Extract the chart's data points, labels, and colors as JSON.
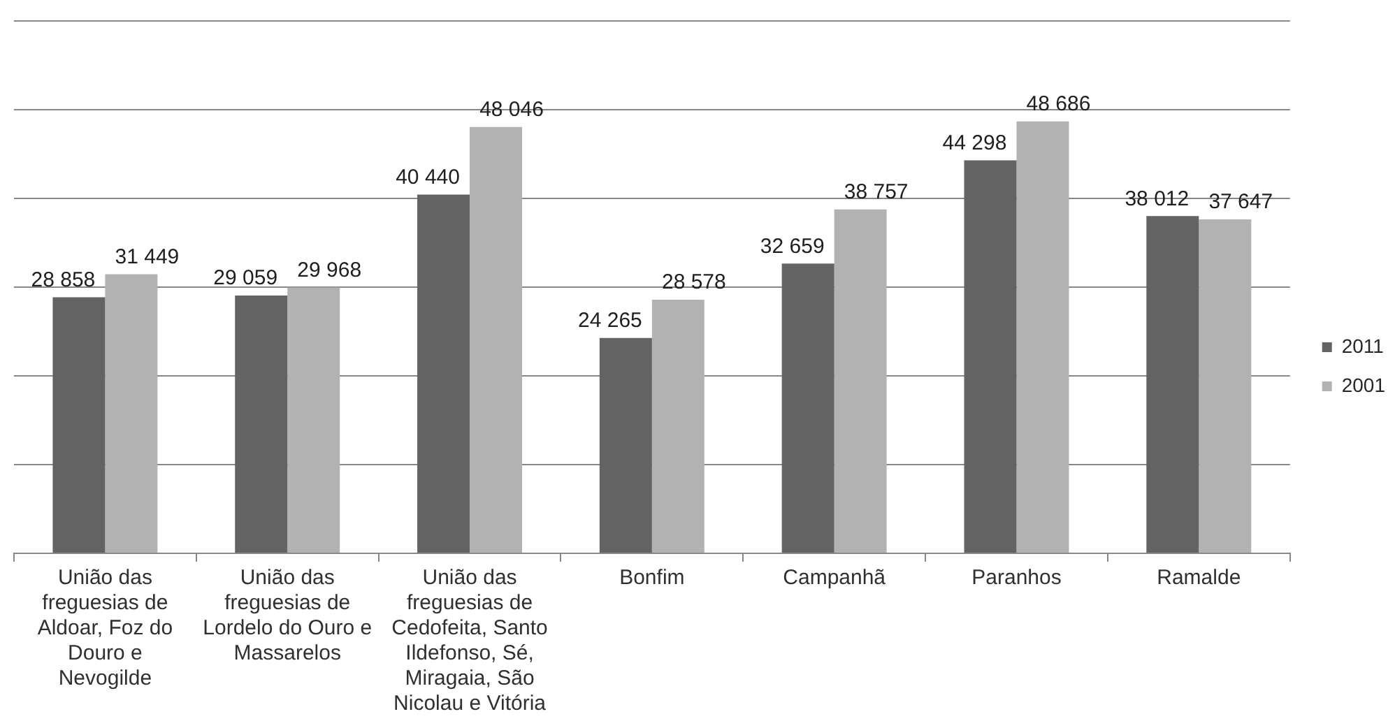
{
  "chart_data": {
    "type": "bar",
    "categories": [
      "União das freguesias de Aldoar, Foz do Douro e Nevogilde",
      "União das freguesias de Lordelo do Ouro e Massarelos",
      "União das freguesias de Cedofeita, Santo Ildefonso, Sé, Miragaia, São Nicolau e Vitória",
      "Bonfim",
      "Campanhã",
      "Paranhos",
      "Ramalde"
    ],
    "series": [
      {
        "name": "2011",
        "color": "#636363",
        "values": [
          28858,
          29059,
          40440,
          24265,
          32659,
          44298,
          38012
        ],
        "value_labels": [
          "28 858",
          "29 059",
          "40 440",
          "24 265",
          "32 659",
          "44 298",
          "38 012"
        ]
      },
      {
        "name": "2001",
        "color": "#b2b2b2",
        "values": [
          31449,
          29968,
          48046,
          28578,
          38757,
          48686,
          37647
        ],
        "value_labels": [
          "31 449",
          "29 968",
          "48 046",
          "28 578",
          "38 757",
          "48 686",
          "37 647"
        ]
      }
    ],
    "ylim": [
      0,
      60000
    ],
    "yticks": [
      {
        "value": 0,
        "label": null
      },
      {
        "value": 10000,
        "label": null
      },
      {
        "value": 20000,
        "label": null
      },
      {
        "value": 30000,
        "label": null
      },
      {
        "value": 40000,
        "label": null
      },
      {
        "value": 50000,
        "label": null
      },
      {
        "value": 60000,
        "label": null
      }
    ],
    "grid": "y",
    "legend": "right",
    "tick_labels": "x"
  }
}
